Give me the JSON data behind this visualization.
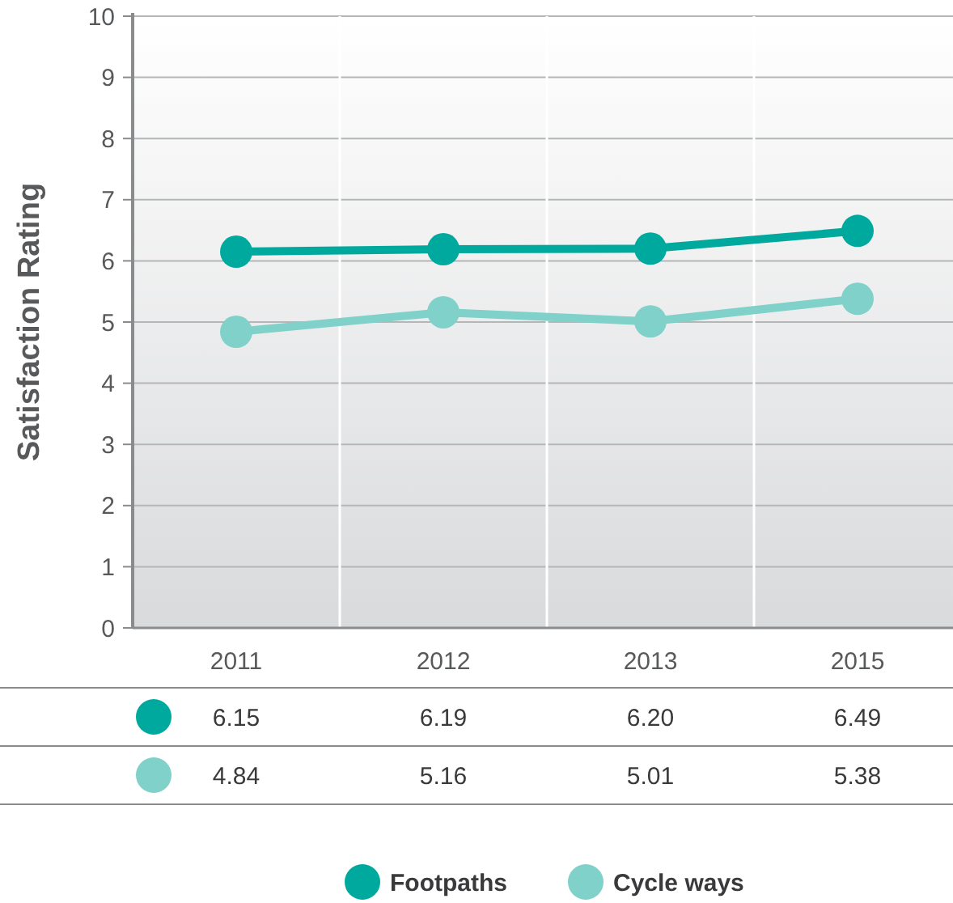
{
  "chart_data": {
    "type": "line",
    "ylabel": "Satisfaction Rating",
    "categories": [
      "2011",
      "2012",
      "2013",
      "2015"
    ],
    "series": [
      {
        "name": "Footpaths",
        "color": "#00a99d",
        "values": [
          6.15,
          6.19,
          6.2,
          6.49
        ],
        "value_labels": [
          "6.15",
          "6.19",
          "6.20",
          "6.49"
        ]
      },
      {
        "name": "Cycle ways",
        "color": "#7fd1c9",
        "values": [
          4.84,
          5.16,
          5.01,
          5.38
        ],
        "value_labels": [
          "4.84",
          "5.16",
          "5.01",
          "5.38"
        ]
      }
    ],
    "ylim": [
      0,
      10
    ],
    "yticks": [
      0,
      1,
      2,
      3,
      4,
      5,
      6,
      7,
      8,
      9,
      10
    ],
    "grid": true,
    "legend": "bottom",
    "marker": "circle",
    "line_style": "solid"
  }
}
